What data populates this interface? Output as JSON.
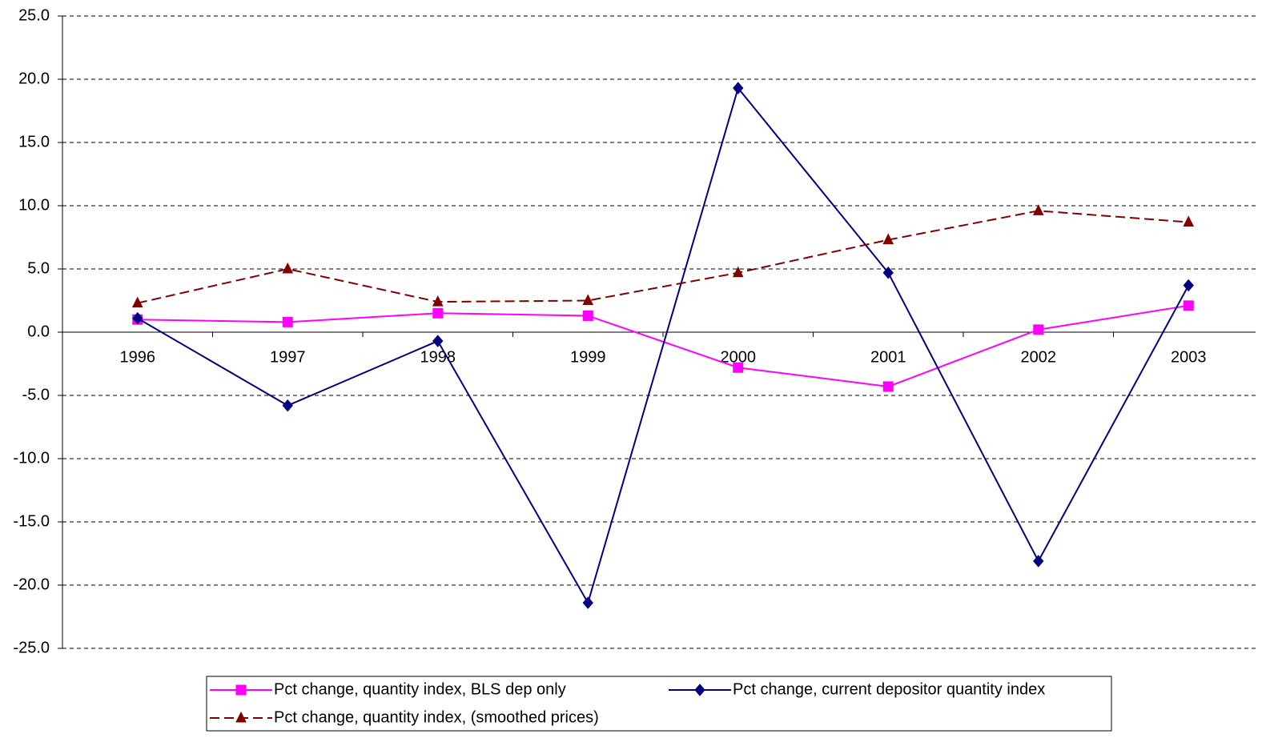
{
  "chart_data": {
    "type": "line",
    "categories": [
      "1996",
      "1997",
      "1998",
      "1999",
      "2000",
      "2001",
      "2002",
      "2003"
    ],
    "series": [
      {
        "name": "Pct change, quantity index, BLS dep only",
        "color": "#ff00ff",
        "marker": "square",
        "dashed": false,
        "values": [
          1.0,
          0.8,
          1.5,
          1.3,
          -2.8,
          -4.3,
          0.2,
          2.1
        ]
      },
      {
        "name": "Pct change, current depositor quantity index",
        "color": "#000080",
        "marker": "diamond",
        "dashed": false,
        "values": [
          1.1,
          -5.8,
          -0.7,
          -21.4,
          19.3,
          4.7,
          -18.1,
          3.7
        ]
      },
      {
        "name": "Pct change, quantity index, (smoothed prices)",
        "color": "#800000",
        "marker": "triangle",
        "dashed": true,
        "values": [
          2.3,
          5.0,
          2.4,
          2.5,
          4.7,
          7.3,
          9.6,
          8.7
        ]
      }
    ],
    "ylim": [
      -25,
      25
    ],
    "yticks": [
      {
        "value": -25,
        "label": "-25.0"
      },
      {
        "value": -20,
        "label": "-20.0"
      },
      {
        "value": -15,
        "label": "-15.0"
      },
      {
        "value": -10,
        "label": "-10.0"
      },
      {
        "value": -5,
        "label": "-5.0"
      },
      {
        "value": 0,
        "label": "0.0"
      },
      {
        "value": 5,
        "label": "5.0"
      },
      {
        "value": 10,
        "label": "10.0"
      },
      {
        "value": 15,
        "label": "15.0"
      },
      {
        "value": 20,
        "label": "20.0"
      },
      {
        "value": 25,
        "label": "25.0"
      }
    ],
    "grid": true
  }
}
